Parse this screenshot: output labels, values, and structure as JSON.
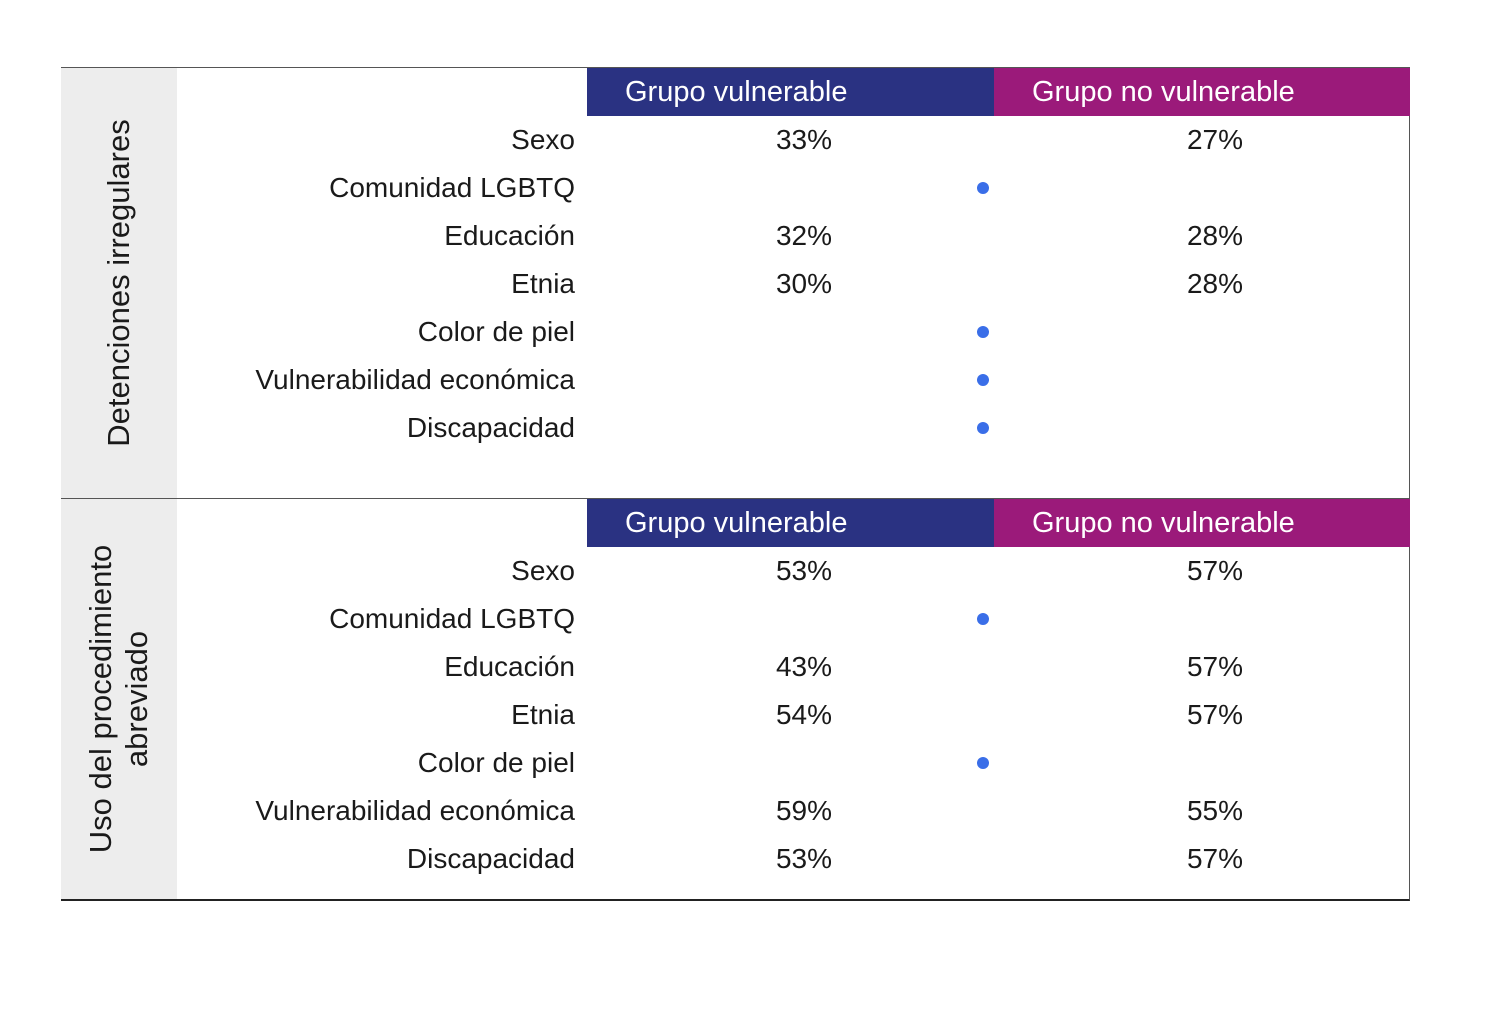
{
  "chart_data": [
    {
      "type": "table",
      "section_label": "Detenciones irregulares",
      "columns": [
        "Grupo vulnerable",
        "Grupo no vulnerable"
      ],
      "rows": [
        {
          "category": "Sexo",
          "vulnerable": "33%",
          "no_vulnerable": "27%",
          "marker": false
        },
        {
          "category": "Comunidad LGBTQ",
          "vulnerable": "",
          "no_vulnerable": "",
          "marker": true
        },
        {
          "category": "Educación",
          "vulnerable": "32%",
          "no_vulnerable": "28%",
          "marker": false
        },
        {
          "category": "Etnia",
          "vulnerable": "30%",
          "no_vulnerable": "28%",
          "marker": false
        },
        {
          "category": "Color de piel",
          "vulnerable": "",
          "no_vulnerable": "",
          "marker": true
        },
        {
          "category": "Vulnerabilidad económica",
          "vulnerable": "",
          "no_vulnerable": "",
          "marker": true
        },
        {
          "category": "Discapacidad",
          "vulnerable": "",
          "no_vulnerable": "",
          "marker": true
        }
      ]
    },
    {
      "type": "table",
      "section_label": "Uso del procedimiento abreviado",
      "columns": [
        "Grupo vulnerable",
        "Grupo no vulnerable"
      ],
      "rows": [
        {
          "category": "Sexo",
          "vulnerable": "53%",
          "no_vulnerable": "57%",
          "marker": false
        },
        {
          "category": "Comunidad LGBTQ",
          "vulnerable": "",
          "no_vulnerable": "",
          "marker": true
        },
        {
          "category": "Educación",
          "vulnerable": "43%",
          "no_vulnerable": "57%",
          "marker": false
        },
        {
          "category": "Etnia",
          "vulnerable": "54%",
          "no_vulnerable": "57%",
          "marker": false
        },
        {
          "category": "Color de piel",
          "vulnerable": "",
          "no_vulnerable": "",
          "marker": true
        },
        {
          "category": "Vulnerabilidad económica",
          "vulnerable": "59%",
          "no_vulnerable": "55%",
          "marker": false
        },
        {
          "category": "Discapacidad",
          "vulnerable": "53%",
          "no_vulnerable": "57%",
          "marker": false
        }
      ]
    }
  ],
  "colors": {
    "vulnerable_header": "#2a3282",
    "no_vulnerable_header": "#9b1a7a",
    "marker": "#3a6ee8",
    "side_panel": "#ededed"
  }
}
